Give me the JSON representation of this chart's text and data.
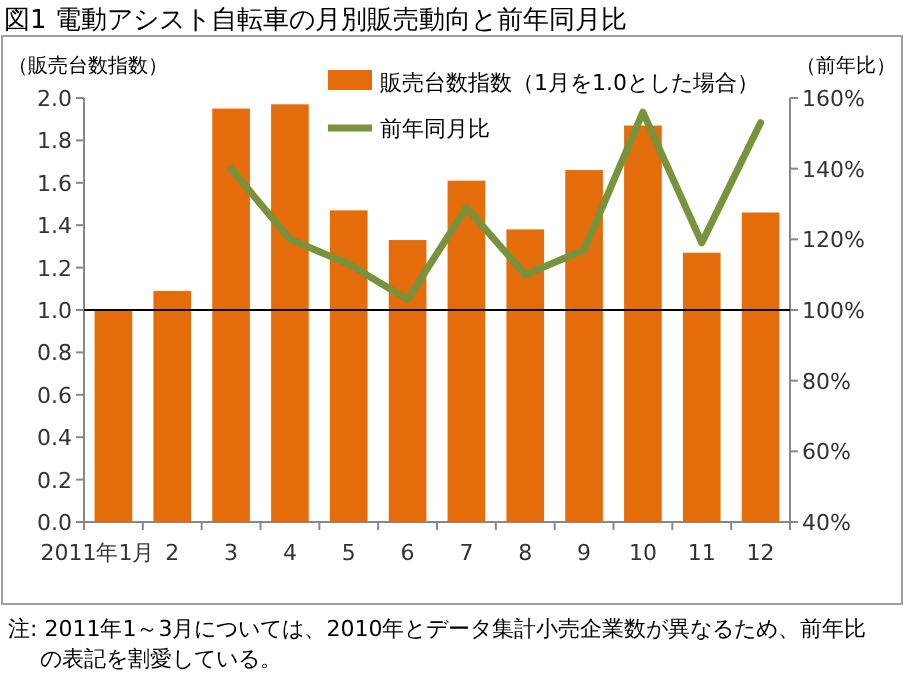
{
  "chart_data": {
    "type": "bar",
    "title": "図1 電動アシスト自転車の月別販売動向と前年同月比",
    "ylabel": "（販売台数指数）",
    "y2label": "（前年比）",
    "categories": [
      "2011年1月",
      "2",
      "3",
      "4",
      "5",
      "6",
      "7",
      "8",
      "9",
      "10",
      "11",
      "12"
    ],
    "series": [
      {
        "name": "販売台数指数（1月を1.0とした場合）",
        "color": "#e46c0a",
        "values": [
          1.0,
          1.09,
          1.95,
          1.97,
          1.47,
          1.33,
          1.61,
          1.38,
          1.66,
          1.87,
          1.27,
          1.46
        ]
      },
      {
        "name": "前年同月比",
        "type": "line",
        "axis": "y2",
        "color": "#77933c",
        "values": [
          null,
          null,
          140,
          120,
          113,
          103,
          129,
          110,
          117,
          156,
          119,
          153
        ]
      }
    ],
    "ylim": [
      0,
      2
    ],
    "yticks": [
      {
        "value": 0,
        "label": "0.0"
      },
      {
        "value": 0.2,
        "label": "0.2"
      },
      {
        "value": 0.4,
        "label": "0.4"
      },
      {
        "value": 0.6,
        "label": "0.6"
      },
      {
        "value": 0.8,
        "label": "0.8"
      },
      {
        "value": 1,
        "label": "1.0"
      },
      {
        "value": 1.2,
        "label": "1.2"
      },
      {
        "value": 1.4,
        "label": "1.4"
      },
      {
        "value": 1.6,
        "label": "1.6"
      },
      {
        "value": 1.8,
        "label": "1.8"
      },
      {
        "value": 2,
        "label": "2.0"
      }
    ],
    "y2lim": [
      40,
      160
    ],
    "y2ticks": [
      {
        "value": 40,
        "label": "40%"
      },
      {
        "value": 60,
        "label": "60%"
      },
      {
        "value": 80,
        "label": "80%"
      },
      {
        "value": 100,
        "label": "100%"
      },
      {
        "value": 120,
        "label": "120%"
      },
      {
        "value": 140,
        "label": "140%"
      },
      {
        "value": 160,
        "label": "160%"
      }
    ],
    "ref_lines": [
      {
        "axis": "y",
        "value": 1.0,
        "color": "#000000"
      }
    ],
    "legend": "top",
    "annotations": [
      "注: 2011年1～3月については、2010年とデータ集計小売企業数が異なるため、前年比の表記を割愛している。"
    ]
  }
}
